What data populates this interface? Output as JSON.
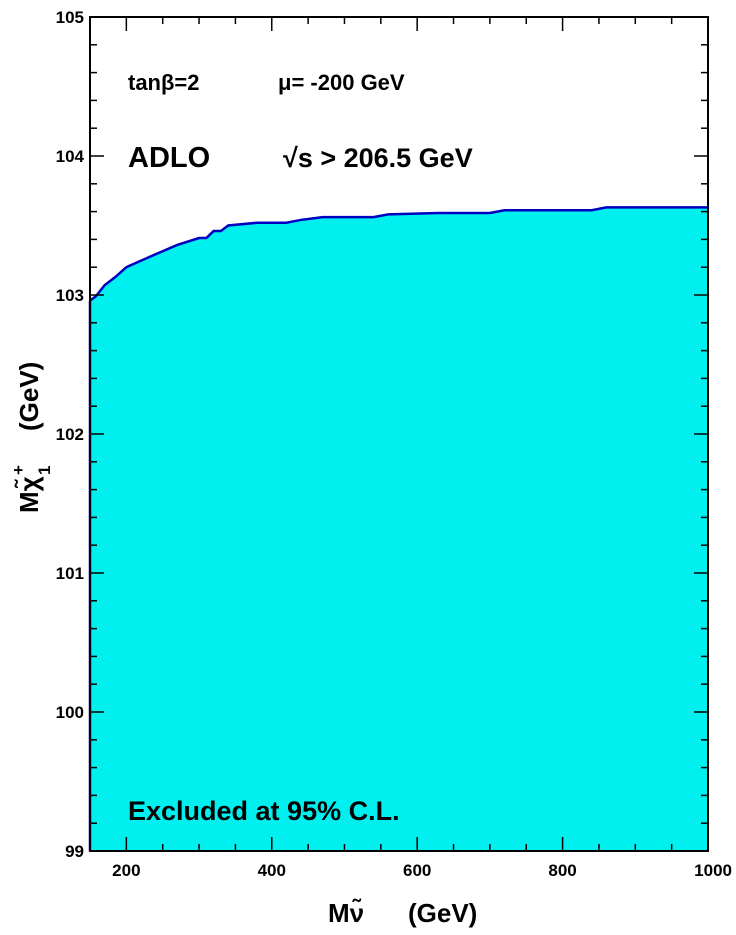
{
  "chart_data": {
    "type": "area",
    "xlim": [
      150,
      1000
    ],
    "ylim": [
      99,
      105
    ],
    "x_ticks": [
      "200",
      "400",
      "600",
      "800",
      "1000"
    ],
    "y_ticks": [
      "99",
      "100",
      "101",
      "102",
      "103",
      "104",
      "105"
    ],
    "xlabel_main": "Mν̃",
    "xlabel_unit": "(GeV)",
    "ylabel_main": "Mχ̃",
    "ylabel_sup": "+",
    "ylabel_sub": "1",
    "ylabel_unit": "(GeV)",
    "annotations": {
      "tanbeta": "tanβ=2",
      "mu": "μ= -200 GeV",
      "experiment": "ADLO",
      "energy": "√s > 206.5 GeV",
      "region": "Excluded at 95% C.L."
    },
    "fill_color": "#00f0f0",
    "line_color": "#0000c0",
    "series": [
      {
        "x": [
          150,
          158,
          170,
          185,
          200,
          230,
          270,
          300,
          310,
          320,
          330,
          340,
          380,
          420,
          440,
          470,
          540,
          560,
          630,
          700,
          720,
          840,
          860,
          1000
        ],
        "y": [
          102.96,
          102.99,
          103.07,
          103.13,
          103.2,
          103.27,
          103.36,
          103.41,
          103.41,
          103.46,
          103.46,
          103.5,
          103.52,
          103.52,
          103.54,
          103.56,
          103.56,
          103.58,
          103.59,
          103.59,
          103.61,
          103.61,
          103.63,
          103.63
        ]
      }
    ]
  }
}
